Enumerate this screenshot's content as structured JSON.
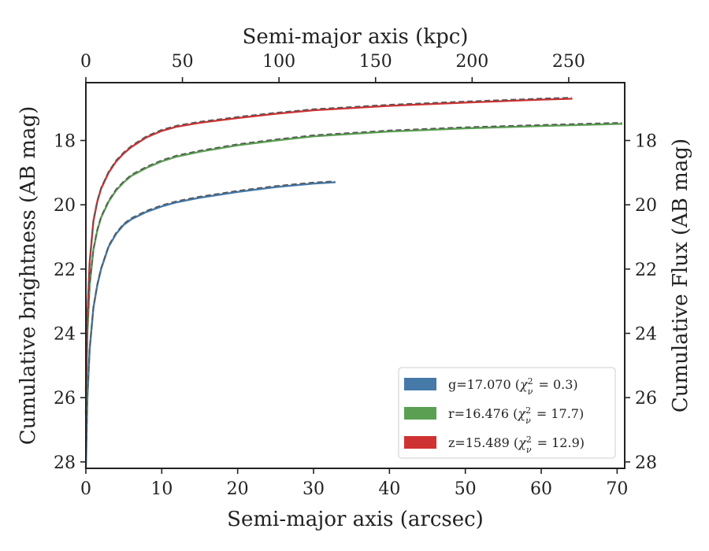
{
  "chart_data": {
    "type": "line",
    "xlabel": "Semi-major axis (arcsec)",
    "x2label": "Semi-major axis (kpc)",
    "ylabel": "Cumulative brightness (AB mag)",
    "y2label": "Cumulative Flux (AB mag)",
    "xlim": [
      0,
      71
    ],
    "x2lim": [
      0,
      279
    ],
    "ylim": [
      28.2,
      16.2
    ],
    "y_inverted": true,
    "xticks": [
      0,
      10,
      20,
      30,
      40,
      50,
      60,
      70
    ],
    "x2ticks": [
      0,
      50,
      100,
      150,
      200,
      250
    ],
    "yticks": [
      18,
      20,
      22,
      24,
      26,
      28
    ],
    "y2ticks": [
      18,
      20,
      22,
      24,
      26,
      28
    ],
    "grid": false,
    "legend_position": "lower-right",
    "legend": [
      {
        "label": "g=17.070",
        "chi2": "0.3"
      },
      {
        "label": "r=16.476",
        "chi2": "17.7"
      },
      {
        "label": "z=15.489",
        "chi2": "12.9"
      }
    ],
    "chi2_symbol": "χ",
    "chi2_sub": "ν",
    "chi2_sup": "2",
    "series": [
      {
        "name": "g",
        "color": "#4479a8",
        "x": [
          0.0,
          0.2,
          0.5,
          1.0,
          1.5,
          2.0,
          3.0,
          4.0,
          5.0,
          6.0,
          8.0,
          10.0,
          12.0,
          15.0,
          20.0,
          25.0,
          30.0,
          32.8
        ],
        "y": [
          28.2,
          26.0,
          24.5,
          23.2,
          22.5,
          22.0,
          21.3,
          20.9,
          20.62,
          20.45,
          20.22,
          20.05,
          19.92,
          19.78,
          19.6,
          19.45,
          19.34,
          19.3
        ]
      },
      {
        "name": "r",
        "color": "#5ba052",
        "x": [
          0.0,
          0.2,
          0.5,
          1.0,
          1.5,
          2.0,
          3.0,
          4.0,
          5.0,
          6.0,
          8.0,
          10.0,
          12.0,
          15.0,
          20.0,
          25.0,
          30.0,
          40.0,
          50.0,
          60.0,
          70.6
        ],
        "y": [
          26.5,
          24.0,
          22.5,
          21.4,
          20.8,
          20.4,
          19.9,
          19.55,
          19.3,
          19.1,
          18.85,
          18.65,
          18.5,
          18.35,
          18.15,
          18.0,
          17.87,
          17.72,
          17.62,
          17.55,
          17.48
        ]
      },
      {
        "name": "z",
        "color": "#cf3232",
        "x": [
          0.0,
          0.2,
          0.5,
          1.0,
          1.5,
          2.0,
          3.0,
          4.0,
          5.0,
          6.0,
          8.0,
          10.0,
          12.0,
          15.0,
          20.0,
          25.0,
          30.0,
          40.0,
          50.0,
          60.0,
          64.0
        ],
        "y": [
          25.8,
          23.5,
          21.8,
          20.5,
          19.9,
          19.5,
          19.0,
          18.65,
          18.4,
          18.2,
          17.9,
          17.7,
          17.57,
          17.45,
          17.3,
          17.17,
          17.06,
          16.92,
          16.82,
          16.73,
          16.7
        ]
      }
    ]
  }
}
